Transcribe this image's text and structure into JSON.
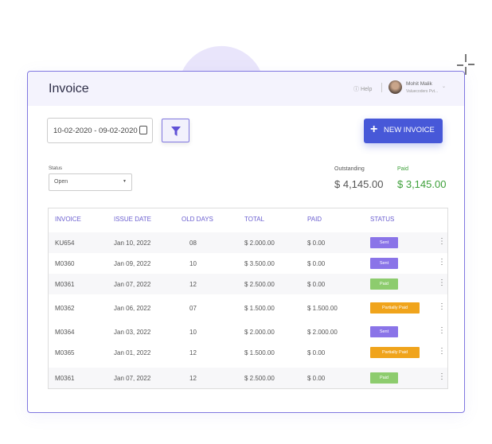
{
  "header": {
    "title": "Invoice",
    "help": "Help",
    "user_name": "Mohit Malik",
    "user_company": "Valuecoders Pvt..."
  },
  "toolbar": {
    "date_range": "10-02-2020 - 09-02-2020",
    "new_invoice": "NEW INVOICE"
  },
  "status_filter": {
    "label": "Status",
    "value": "Open"
  },
  "summary": {
    "outstanding_label": "Outstanding",
    "outstanding_value": "$ 4,145.00",
    "paid_label": "Paid",
    "paid_value": "$ 3,145.00"
  },
  "colors": {
    "accent": "#4758d8",
    "sent": "#8a74e8",
    "paid": "#8dcc6e",
    "partial": "#f0a41c"
  },
  "table": {
    "headers": [
      "INVOICE",
      "ISSUE DATE",
      "OLD DAYS",
      "TOTAL",
      "PAID",
      "STATUS"
    ],
    "rows": [
      {
        "invoice": "KU654",
        "date": "Jan 10, 2022",
        "days": "08",
        "total": "$ 2.000.00",
        "paid": "$ 0.00",
        "status": "Sent"
      },
      {
        "invoice": "M0360",
        "date": "Jan 09, 2022",
        "days": "10",
        "total": "$ 3.500.00",
        "paid": "$ 0.00",
        "status": "Sent"
      },
      {
        "invoice": "M0361",
        "date": "Jan 07, 2022",
        "days": "12",
        "total": "$ 2.500.00",
        "paid": "$ 0.00",
        "status": "Paid"
      },
      {
        "invoice": "M0362",
        "date": "Jan 06, 2022",
        "days": "07",
        "total": "$ 1.500.00",
        "paid": "$ 1.500.00",
        "status": "Partially Paid"
      },
      {
        "invoice": "M0364",
        "date": "Jan 03, 2022",
        "days": "10",
        "total": "$ 2.000.00",
        "paid": "$ 2.000.00",
        "status": "Sent"
      },
      {
        "invoice": "M0365",
        "date": "Jan 01, 2022",
        "days": "12",
        "total": "$ 1.500.00",
        "paid": "$ 0.00",
        "status": "Partially Paid"
      },
      {
        "invoice": "M0361",
        "date": "Jan 07, 2022",
        "days": "12",
        "total": "$ 2.500.00",
        "paid": "$ 0.00",
        "status": "Paid"
      }
    ]
  }
}
